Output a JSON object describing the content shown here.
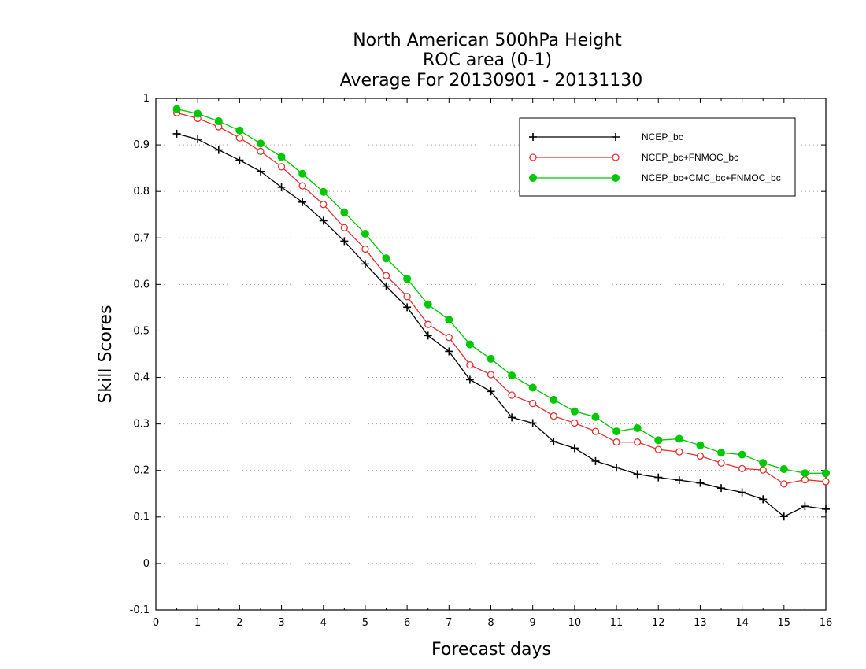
{
  "chart_data": {
    "type": "line",
    "title": [
      "North American 500hPa Height",
      "ROC area (0-1)",
      "Average For 20130901 - 20131130"
    ],
    "xlabel": "Forecast days",
    "ylabel": "Skill Scores",
    "xlim": [
      0,
      16
    ],
    "ylim": [
      -0.1,
      1
    ],
    "xticks": [
      "0",
      "1",
      "2",
      "3",
      "4",
      "5",
      "6",
      "7",
      "8",
      "9",
      "10",
      "11",
      "12",
      "13",
      "14",
      "15",
      "16"
    ],
    "yticks": [
      "-0.1",
      "0",
      "0.1",
      "0.2",
      "0.3",
      "0.4",
      "0.5",
      "0.6",
      "0.7",
      "0.8",
      "0.9",
      "1"
    ],
    "grid": true,
    "legend_position": "top-right",
    "x": [
      0.5,
      1,
      1.5,
      2,
      2.5,
      3,
      3.5,
      4,
      4.5,
      5,
      5.5,
      6,
      6.5,
      7,
      7.5,
      8,
      8.5,
      9,
      9.5,
      10,
      10.5,
      11,
      11.5,
      12,
      12.5,
      13,
      13.5,
      14,
      14.5,
      15,
      15.5,
      16
    ],
    "series": [
      {
        "name": "NCEP_bc",
        "color": "#000000",
        "marker": "plus",
        "values": [
          0.924,
          0.912,
          0.889,
          0.867,
          0.843,
          0.809,
          0.777,
          0.737,
          0.693,
          0.644,
          0.596,
          0.551,
          0.49,
          0.456,
          0.395,
          0.37,
          0.314,
          0.302,
          0.262,
          0.248,
          0.22,
          0.206,
          0.192,
          0.185,
          0.179,
          0.173,
          0.162,
          0.153,
          0.138,
          0.101,
          0.123,
          0.117
        ]
      },
      {
        "name": "NCEP_bc+FNMOC_bc",
        "color": "#e03030",
        "marker": "open-circle",
        "values": [
          0.969,
          0.957,
          0.939,
          0.915,
          0.886,
          0.853,
          0.812,
          0.772,
          0.722,
          0.676,
          0.619,
          0.574,
          0.514,
          0.486,
          0.427,
          0.406,
          0.362,
          0.344,
          0.317,
          0.302,
          0.284,
          0.261,
          0.261,
          0.245,
          0.24,
          0.231,
          0.216,
          0.204,
          0.201,
          0.171,
          0.18,
          0.176
        ]
      },
      {
        "name": "NCEP_bc+CMC_bc+FNMOC_bc",
        "color": "#00c800",
        "marker": "filled-circle",
        "values": [
          0.977,
          0.967,
          0.951,
          0.931,
          0.903,
          0.874,
          0.838,
          0.799,
          0.755,
          0.709,
          0.656,
          0.612,
          0.557,
          0.524,
          0.471,
          0.44,
          0.404,
          0.378,
          0.352,
          0.327,
          0.315,
          0.284,
          0.291,
          0.265,
          0.268,
          0.254,
          0.238,
          0.234,
          0.216,
          0.203,
          0.194,
          0.194
        ]
      }
    ]
  }
}
